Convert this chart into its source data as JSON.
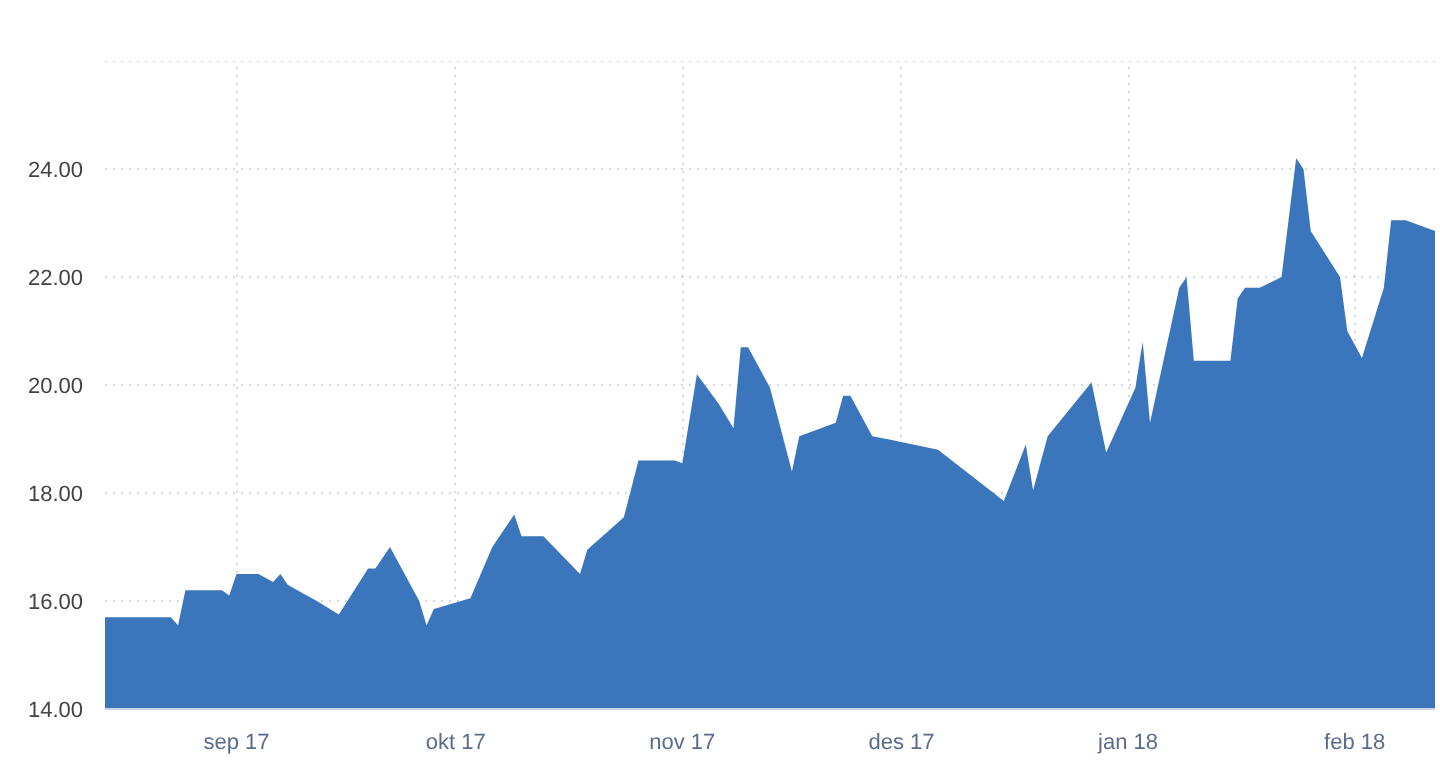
{
  "chart_data": {
    "type": "area",
    "x": [
      "2017-08-14",
      "2017-08-23",
      "2017-08-24",
      "2017-08-25",
      "2017-08-30",
      "2017-08-31",
      "2017-09-01",
      "2017-09-04",
      "2017-09-06",
      "2017-09-07",
      "2017-09-08",
      "2017-09-10",
      "2017-09-12",
      "2017-09-15",
      "2017-09-19",
      "2017-09-20",
      "2017-09-22",
      "2017-09-26",
      "2017-09-27",
      "2017-09-28",
      "2017-10-03",
      "2017-10-06",
      "2017-10-09",
      "2017-10-10",
      "2017-10-13",
      "2017-10-18",
      "2017-10-19",
      "2017-10-24",
      "2017-10-26",
      "2017-10-31",
      "2017-11-01",
      "2017-11-03",
      "2017-11-06",
      "2017-11-08",
      "2017-11-09",
      "2017-11-10",
      "2017-11-13",
      "2017-11-16",
      "2017-11-17",
      "2017-11-22",
      "2017-11-23",
      "2017-11-24",
      "2017-11-27",
      "2017-11-29",
      "2017-12-06",
      "2017-12-15",
      "2017-12-18",
      "2017-12-19",
      "2017-12-21",
      "2017-12-27",
      "2017-12-29",
      "2018-01-02",
      "2018-01-03",
      "2018-01-04",
      "2018-01-08",
      "2018-01-09",
      "2018-01-10",
      "2018-01-15",
      "2018-01-16",
      "2018-01-17",
      "2018-01-19",
      "2018-01-22",
      "2018-01-24",
      "2018-01-25",
      "2018-01-26",
      "2018-01-30",
      "2018-01-31",
      "2018-02-02",
      "2018-02-05",
      "2018-02-06",
      "2018-02-08",
      "2018-02-12"
    ],
    "series": [
      {
        "color": "#3b76bc",
        "values": [
          15.7,
          15.7,
          15.55,
          16.2,
          16.2,
          16.1,
          16.5,
          16.5,
          16.35,
          16.5,
          16.3,
          16.15,
          16.0,
          15.75,
          16.6,
          16.6,
          17.0,
          16.0,
          15.55,
          15.85,
          16.05,
          17.0,
          17.6,
          17.2,
          17.2,
          16.5,
          16.95,
          17.55,
          18.6,
          18.6,
          18.55,
          20.2,
          19.65,
          19.2,
          20.7,
          20.7,
          19.95,
          18.4,
          19.05,
          19.3,
          19.8,
          19.8,
          19.05,
          19.0,
          18.8,
          17.85,
          18.9,
          18.05,
          19.05,
          20.05,
          18.75,
          19.95,
          20.8,
          19.3,
          21.8,
          22.0,
          20.45,
          20.45,
          21.6,
          21.8,
          21.8,
          22.0,
          24.2,
          24.0,
          22.85,
          22.0,
          21.0,
          20.5,
          21.8,
          23.05,
          23.05,
          22.85
        ]
      }
    ],
    "xlim": [
      "2017-08-14",
      "2018-02-12"
    ],
    "xticks": [
      {
        "value": "2017-09-01",
        "label": "sep 17"
      },
      {
        "value": "2017-10-01",
        "label": "okt 17"
      },
      {
        "value": "2017-11-01",
        "label": "nov 17"
      },
      {
        "value": "2017-12-01",
        "label": "des 17"
      },
      {
        "value": "2018-01-01",
        "label": "jan 18"
      },
      {
        "value": "2018-02-01",
        "label": "feb 18"
      }
    ],
    "ylim": [
      14,
      26
    ],
    "yticks": [
      {
        "value": 14,
        "label": "14.00"
      },
      {
        "value": 16,
        "label": "16.00"
      },
      {
        "value": 18,
        "label": "18.00"
      },
      {
        "value": 20,
        "label": "20.00"
      },
      {
        "value": 22,
        "label": "22.00"
      },
      {
        "value": 24,
        "label": "24.00"
      },
      {
        "value": 26,
        "label": null
      }
    ],
    "grid": true
  }
}
